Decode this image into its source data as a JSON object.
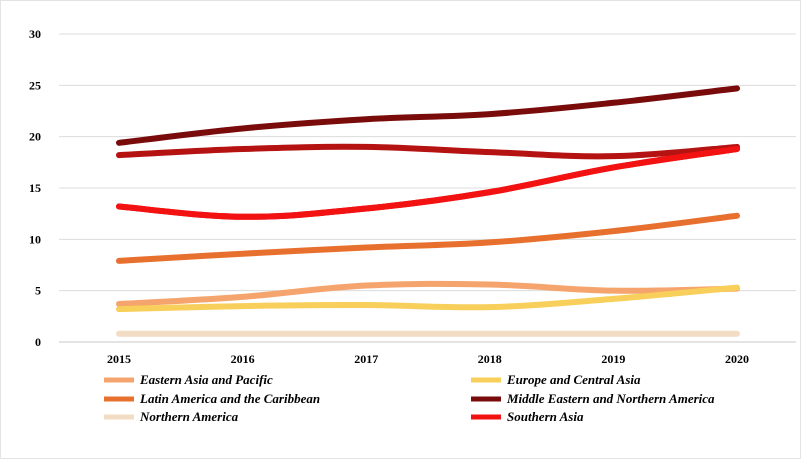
{
  "chart_data": {
    "type": "line",
    "title": "",
    "xlabel": "",
    "ylabel": "",
    "x": [
      "2015",
      "2016",
      "2017",
      "2018",
      "2019",
      "2020"
    ],
    "y_ticks": [
      "0",
      "5",
      "10",
      "15",
      "20",
      "25",
      "30"
    ],
    "ylim": [
      0,
      30
    ],
    "grid": "horizontal",
    "legend_position": "bottom",
    "series": [
      {
        "name": "Eastern Asia and Pacific",
        "color": "#f4a46c",
        "values": [
          3.7,
          4.4,
          5.5,
          5.6,
          5.0,
          5.2
        ]
      },
      {
        "name": "Europe and Central Asia",
        "color": "#f8cf5a",
        "values": [
          3.2,
          3.5,
          3.6,
          3.4,
          4.2,
          5.3
        ]
      },
      {
        "name": "Latin America and the Caribbean",
        "color": "#e8702f",
        "values": [
          7.9,
          8.6,
          9.2,
          9.7,
          10.8,
          12.3
        ]
      },
      {
        "name": "Middle Eastern and Northern America",
        "color": "#7a0b0b",
        "values": [
          19.4,
          20.8,
          21.7,
          22.2,
          23.3,
          24.7
        ]
      },
      {
        "name": "Northern America",
        "color": "#f3dcc4",
        "values": [
          0.8,
          0.8,
          0.8,
          0.8,
          0.8,
          0.8
        ]
      },
      {
        "name": "Southern Asia",
        "color": "#f21212",
        "values": [
          13.2,
          12.2,
          13.0,
          14.6,
          17.0,
          18.8
        ]
      }
    ],
    "extra_series": [
      {
        "color": "#b51212",
        "values": [
          18.2,
          18.8,
          19.0,
          18.5,
          18.1,
          19.0
        ]
      }
    ]
  }
}
